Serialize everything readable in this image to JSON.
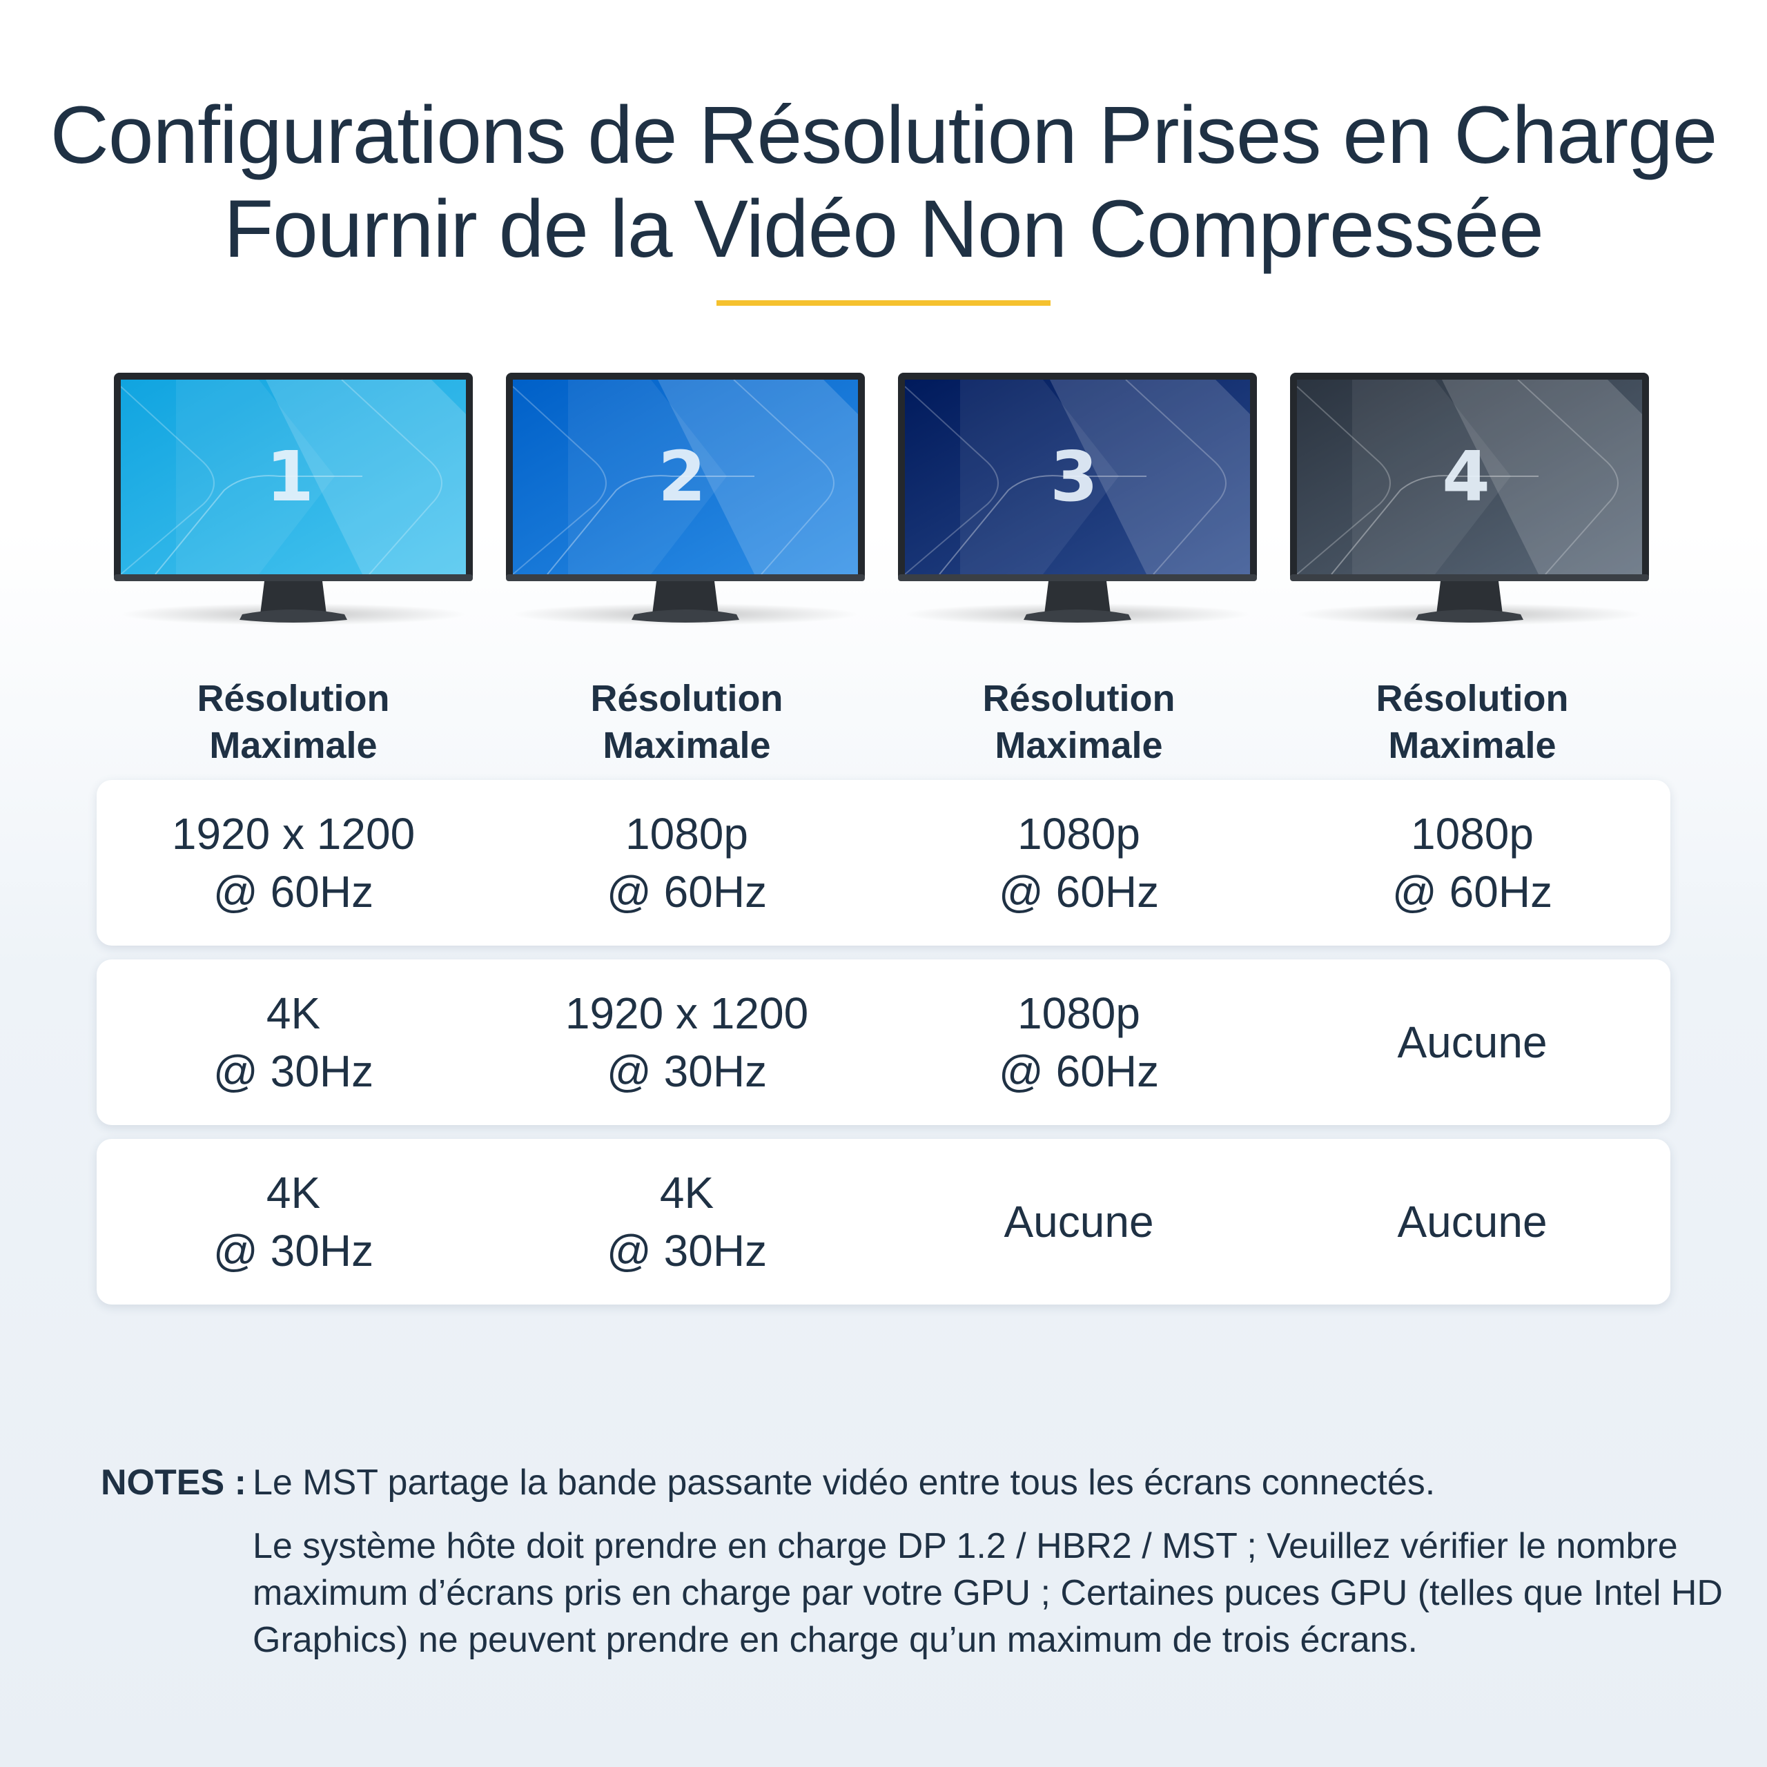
{
  "title": {
    "line1": "Configurations de Résolution Prises en Charge",
    "line2": "Fournir de la Vidéo Non Compressée"
  },
  "colors": {
    "accent": "#f5c12e",
    "text": "#1f3144"
  },
  "monitors": [
    {
      "number": "1",
      "screen_from": "#10a4e0",
      "screen_to": "#48c4ef"
    },
    {
      "number": "2",
      "screen_from": "#0060c8",
      "screen_to": "#2d8ee6"
    },
    {
      "number": "3",
      "screen_from": "#001a5c",
      "screen_to": "#2f4e8e"
    },
    {
      "number": "4",
      "screen_from": "#2b3440",
      "screen_to": "#5a6878"
    }
  ],
  "column_header": {
    "line1": "Résolution",
    "line2": "Maximale"
  },
  "rows": [
    [
      {
        "line1": "1920 x 1200",
        "line2": "@ 60Hz"
      },
      {
        "line1": "1080p",
        "line2": "@ 60Hz"
      },
      {
        "line1": "1080p",
        "line2": "@ 60Hz"
      },
      {
        "line1": "1080p",
        "line2": "@ 60Hz"
      }
    ],
    [
      {
        "line1": "4K",
        "line2": "@ 30Hz"
      },
      {
        "line1": "1920 x 1200",
        "line2": "@ 30Hz"
      },
      {
        "line1": "1080p",
        "line2": "@ 60Hz"
      },
      {
        "line1": "Aucune",
        "line2": ""
      }
    ],
    [
      {
        "line1": "4K",
        "line2": "@ 30Hz"
      },
      {
        "line1": "4K",
        "line2": "@ 30Hz"
      },
      {
        "line1": "Aucune",
        "line2": ""
      },
      {
        "line1": "Aucune",
        "line2": ""
      }
    ]
  ],
  "notes": {
    "label": "NOTES :",
    "line1": "Le MST partage la bande passante vidéo entre tous les écrans connectés.",
    "line2": "Le système hôte doit prendre en charge DP 1.2 / HBR2 / MST ; Veuillez vérifier le nombre maximum d’écrans pris en charge par votre GPU ; Certaines puces GPU (telles que Intel HD Graphics) ne peuvent prendre en charge qu’un maximum de trois écrans."
  }
}
